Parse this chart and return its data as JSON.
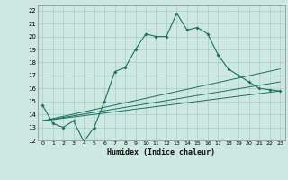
{
  "xlabel": "Humidex (Indice chaleur)",
  "bg_color": "#cce8e0",
  "grid_color": "#aacccc",
  "line_color": "#1a7060",
  "xlim": [
    -0.5,
    23.5
  ],
  "ylim": [
    12,
    22.4
  ],
  "xticks": [
    0,
    1,
    2,
    3,
    4,
    5,
    6,
    7,
    8,
    9,
    10,
    11,
    12,
    13,
    14,
    15,
    16,
    17,
    18,
    19,
    20,
    21,
    22,
    23
  ],
  "yticks": [
    12,
    13,
    14,
    15,
    16,
    17,
    18,
    19,
    20,
    21,
    22
  ],
  "line1_x": [
    0,
    1,
    2,
    3,
    4,
    5,
    6,
    7,
    8,
    9,
    10,
    11,
    12,
    13,
    14,
    15,
    16,
    17,
    18,
    19,
    20,
    21,
    22,
    23
  ],
  "line1_y": [
    14.7,
    13.3,
    13.0,
    13.5,
    11.9,
    13.0,
    15.0,
    17.3,
    17.6,
    19.0,
    20.2,
    20.0,
    20.0,
    21.8,
    20.5,
    20.7,
    20.2,
    18.6,
    17.5,
    17.0,
    16.5,
    16.0,
    15.9,
    15.8
  ],
  "line2_x": [
    0,
    23
  ],
  "line2_y": [
    13.5,
    15.8
  ],
  "line3_x": [
    0,
    23
  ],
  "line3_y": [
    13.5,
    16.5
  ],
  "line4_x": [
    0,
    23
  ],
  "line4_y": [
    13.5,
    17.5
  ]
}
